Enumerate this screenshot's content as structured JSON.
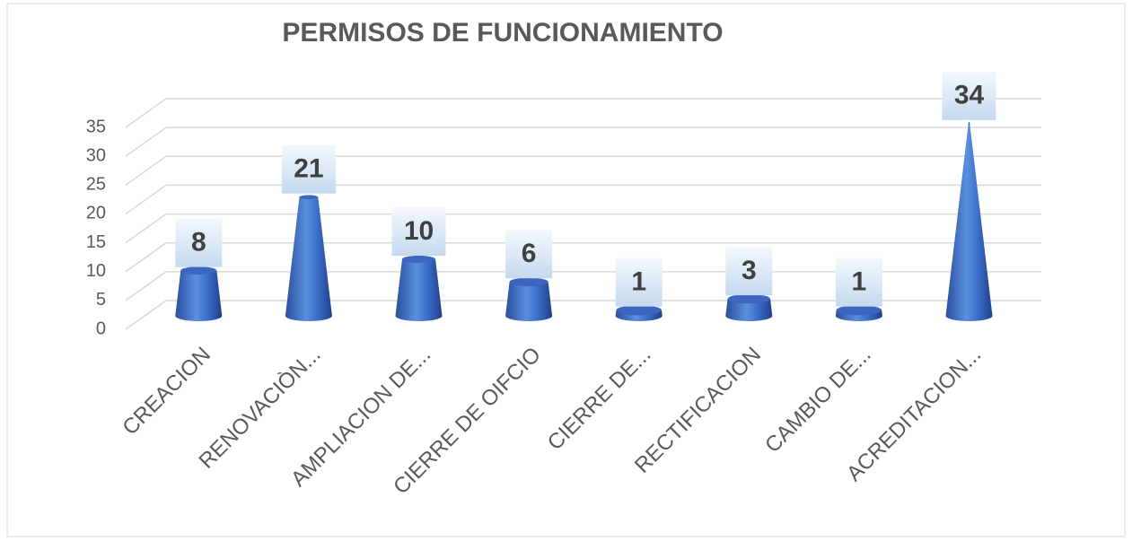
{
  "chart_data": {
    "type": "cone",
    "title": "PERMISOS DE FUNCIONAMIENTO",
    "categories": [
      "CREACION",
      "RENOVACIÒN...",
      "AMPLIACION DE...",
      "CIERRE DE OIFCIO",
      "CIERRE DE...",
      "RECTIFICACION",
      "CAMBIO DE...",
      "ACREDITACION..."
    ],
    "values": [
      8,
      21,
      10,
      6,
      1,
      3,
      1,
      34
    ],
    "color": "#4472c4",
    "ylim": [
      0,
      35
    ],
    "yticks": [
      0,
      5,
      10,
      15,
      20,
      25,
      30,
      35
    ],
    "grid": true
  }
}
